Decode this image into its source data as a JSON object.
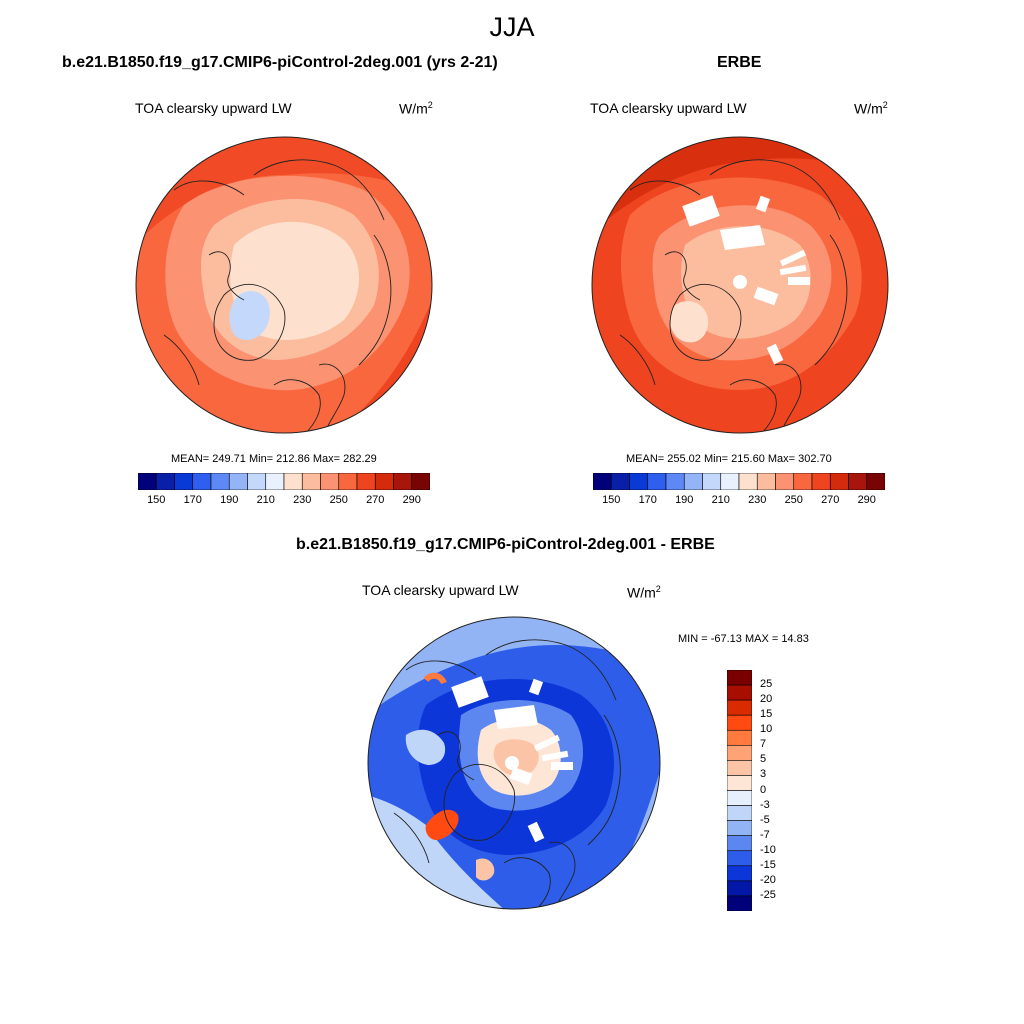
{
  "season": "JJA",
  "panels": [
    {
      "title": "b.e21.B1850.f19_g17.CMIP6-piControl-2deg.001 (yrs 2-21)",
      "variable": "TOA clearsky upward LW",
      "units_base": "W/m",
      "units_exp": "2",
      "stats": "MEAN= 249.71  Min= 212.86  Max= 282.29",
      "colorbar_ticks": [
        "150",
        "170",
        "190",
        "210",
        "230",
        "250",
        "270",
        "290"
      ]
    },
    {
      "title": "ERBE",
      "variable": "TOA clearsky upward LW",
      "units_base": "W/m",
      "units_exp": "2",
      "stats": "MEAN= 255.02  Min= 215.60  Max= 302.70",
      "colorbar_ticks": [
        "150",
        "170",
        "190",
        "210",
        "230",
        "250",
        "270",
        "290"
      ]
    },
    {
      "title": "b.e21.B1850.f19_g17.CMIP6-piControl-2deg.001 - ERBE",
      "variable": "TOA clearsky upward LW",
      "units_base": "W/m",
      "units_exp": "2",
      "stats": "MIN = -67.13 MAX =  14.83",
      "colorbar_ticks": [
        "25",
        "20",
        "15",
        "10",
        "7",
        "5",
        "3",
        "0",
        "-3",
        "-5",
        "-7",
        "-10",
        "-15",
        "-20",
        "-25"
      ]
    }
  ],
  "colors": {
    "abs_scale": [
      "#00007a",
      "#0a1fa8",
      "#0a3ad6",
      "#2f5fef",
      "#5e88f6",
      "#94b4f8",
      "#c4d8fb",
      "#e8f1fd",
      "#fde0cd",
      "#fcbd9f",
      "#fb9272",
      "#f9673f",
      "#ee4520",
      "#d42b0d",
      "#a8150a",
      "#780403"
    ],
    "diff_scale": [
      "#7a0000",
      "#a80e00",
      "#d92a00",
      "#ff4b11",
      "#ff7a3e",
      "#ffa276",
      "#fcc4a6",
      "#fde6d6",
      "#e6effb",
      "#c0d6f8",
      "#92b4f5",
      "#5d87f0",
      "#2e5de9",
      "#0d36d8",
      "#0318a6",
      "#00007a"
    ]
  }
}
